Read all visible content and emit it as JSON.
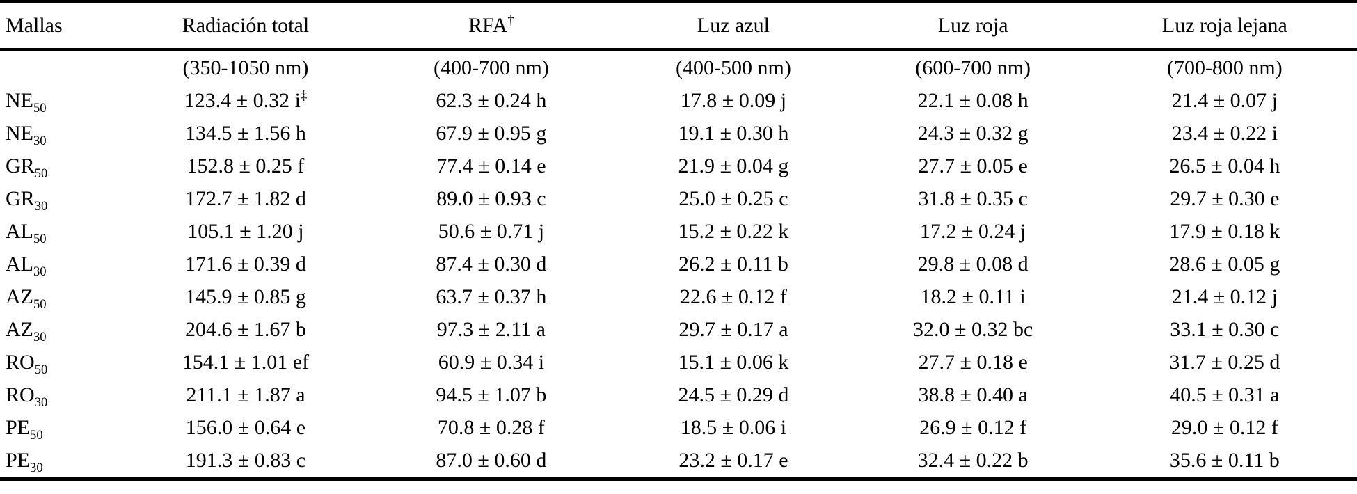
{
  "colors": {
    "text": "#000000",
    "background": "#ffffff",
    "rule": "#000000"
  },
  "table": {
    "header": [
      {
        "label": "Mallas",
        "sup": "",
        "range": ""
      },
      {
        "label": "Radiación total",
        "sup": "",
        "range": "(350-1050 nm)"
      },
      {
        "label": "RFA",
        "sup": "†",
        "range": "(400-700 nm)"
      },
      {
        "label": "Luz azul",
        "sup": "",
        "range": "(400-500 nm)"
      },
      {
        "label": "Luz roja",
        "sup": "",
        "range": "(600-700 nm)"
      },
      {
        "label": "Luz roja lejana",
        "sup": "",
        "range": "(700-800 nm)"
      }
    ],
    "rows": [
      {
        "mesh": "NE",
        "sub": "50",
        "cells": [
          {
            "text": "123.4 ± 0.32 i",
            "sup": "‡"
          },
          {
            "text": "62.3 ± 0.24 h",
            "sup": ""
          },
          {
            "text": "17.8 ± 0.09 j",
            "sup": ""
          },
          {
            "text": "22.1 ± 0.08 h",
            "sup": ""
          },
          {
            "text": "21.4 ± 0.07 j",
            "sup": ""
          }
        ]
      },
      {
        "mesh": "NE",
        "sub": "30",
        "cells": [
          {
            "text": "134.5 ± 1.56 h",
            "sup": ""
          },
          {
            "text": "67.9 ± 0.95 g",
            "sup": ""
          },
          {
            "text": "19.1 ± 0.30 h",
            "sup": ""
          },
          {
            "text": "24.3 ± 0.32 g",
            "sup": ""
          },
          {
            "text": "23.4 ± 0.22 i",
            "sup": ""
          }
        ]
      },
      {
        "mesh": "GR",
        "sub": "50",
        "cells": [
          {
            "text": "152.8 ± 0.25 f",
            "sup": ""
          },
          {
            "text": "77.4 ± 0.14 e",
            "sup": ""
          },
          {
            "text": "21.9 ± 0.04 g",
            "sup": ""
          },
          {
            "text": "27.7 ± 0.05 e",
            "sup": ""
          },
          {
            "text": "26.5 ± 0.04 h",
            "sup": ""
          }
        ]
      },
      {
        "mesh": "GR",
        "sub": "30",
        "cells": [
          {
            "text": "172.7 ± 1.82 d",
            "sup": ""
          },
          {
            "text": "89.0 ± 0.93 c",
            "sup": ""
          },
          {
            "text": "25.0 ± 0.25 c",
            "sup": ""
          },
          {
            "text": "31.8 ± 0.35 c",
            "sup": ""
          },
          {
            "text": "29.7 ± 0.30 e",
            "sup": ""
          }
        ]
      },
      {
        "mesh": "AL",
        "sub": "50",
        "cells": [
          {
            "text": "105.1 ± 1.20 j",
            "sup": ""
          },
          {
            "text": "50.6 ± 0.71 j",
            "sup": ""
          },
          {
            "text": "15.2 ± 0.22 k",
            "sup": ""
          },
          {
            "text": "17.2 ± 0.24 j",
            "sup": ""
          },
          {
            "text": "17.9 ± 0.18 k",
            "sup": ""
          }
        ]
      },
      {
        "mesh": "AL",
        "sub": "30",
        "cells": [
          {
            "text": "171.6 ± 0.39 d",
            "sup": ""
          },
          {
            "text": "87.4 ± 0.30 d",
            "sup": ""
          },
          {
            "text": "26.2 ± 0.11 b",
            "sup": ""
          },
          {
            "text": "29.8 ± 0.08 d",
            "sup": ""
          },
          {
            "text": "28.6 ± 0.05 g",
            "sup": ""
          }
        ]
      },
      {
        "mesh": "AZ",
        "sub": "50",
        "cells": [
          {
            "text": "145.9 ± 0.85 g",
            "sup": ""
          },
          {
            "text": "63.7 ± 0.37 h",
            "sup": ""
          },
          {
            "text": "22.6 ± 0.12 f",
            "sup": ""
          },
          {
            "text": "18.2 ± 0.11 i",
            "sup": ""
          },
          {
            "text": "21.4 ± 0.12 j",
            "sup": ""
          }
        ]
      },
      {
        "mesh": "AZ",
        "sub": "30",
        "cells": [
          {
            "text": "204.6 ± 1.67 b",
            "sup": ""
          },
          {
            "text": "97.3 ± 2.11 a",
            "sup": ""
          },
          {
            "text": "29.7 ± 0.17 a",
            "sup": ""
          },
          {
            "text": "32.0 ± 0.32 bc",
            "sup": ""
          },
          {
            "text": "33.1 ± 0.30 c",
            "sup": ""
          }
        ]
      },
      {
        "mesh": "RO",
        "sub": "50",
        "cells": [
          {
            "text": "154.1 ± 1.01 ef",
            "sup": ""
          },
          {
            "text": "60.9 ± 0.34 i",
            "sup": ""
          },
          {
            "text": "15.1 ± 0.06 k",
            "sup": ""
          },
          {
            "text": "27.7 ± 0.18 e",
            "sup": ""
          },
          {
            "text": "31.7 ± 0.25 d",
            "sup": ""
          }
        ]
      },
      {
        "mesh": "RO",
        "sub": "30",
        "cells": [
          {
            "text": "211.1 ± 1.87 a",
            "sup": ""
          },
          {
            "text": "94.5 ± 1.07 b",
            "sup": ""
          },
          {
            "text": "24.5 ± 0.29 d",
            "sup": ""
          },
          {
            "text": "38.8 ± 0.40 a",
            "sup": ""
          },
          {
            "text": "40.5 ± 0.31 a",
            "sup": ""
          }
        ]
      },
      {
        "mesh": "PE",
        "sub": "50",
        "cells": [
          {
            "text": "156.0 ± 0.64 e",
            "sup": ""
          },
          {
            "text": "70.8 ± 0.28 f",
            "sup": ""
          },
          {
            "text": "18.5 ± 0.06 i",
            "sup": ""
          },
          {
            "text": "26.9 ± 0.12 f",
            "sup": ""
          },
          {
            "text": "29.0 ± 0.12 f",
            "sup": ""
          }
        ]
      },
      {
        "mesh": "PE",
        "sub": "30",
        "cells": [
          {
            "text": "191.3 ± 0.83 c",
            "sup": ""
          },
          {
            "text": "87.0 ± 0.60 d",
            "sup": ""
          },
          {
            "text": "23.2 ± 0.17 e",
            "sup": ""
          },
          {
            "text": "32.4 ± 0.22 b",
            "sup": ""
          },
          {
            "text": "35.6 ± 0.11 b",
            "sup": ""
          }
        ]
      }
    ]
  }
}
